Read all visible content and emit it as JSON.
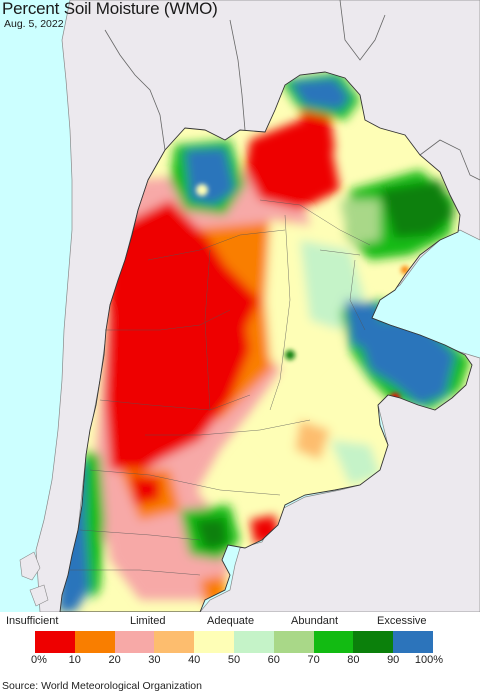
{
  "header": {
    "title": "Percent Soil Moisture (WMO)",
    "date": "Aug. 5, 2022"
  },
  "legend": {
    "categories": [
      "Insufficient",
      "Limited",
      "Adequate",
      "Abundant",
      "Excessive"
    ],
    "ticks": [
      "0%",
      "10",
      "20",
      "30",
      "40",
      "50",
      "60",
      "70",
      "80",
      "90",
      "100%"
    ],
    "colors": [
      "#ee0000",
      "#f97e00",
      "#f7a9a7",
      "#fdbd6e",
      "#fefeb6",
      "#c5f3c8",
      "#a9d888",
      "#12bb12",
      "#0b800b",
      "#2c74bb"
    ]
  },
  "colors": {
    "ocean": "#ccffff",
    "land_outside": "#ece9ee",
    "border": "#555555"
  },
  "footer": {
    "source": "Source: World Meteorological Organization"
  }
}
